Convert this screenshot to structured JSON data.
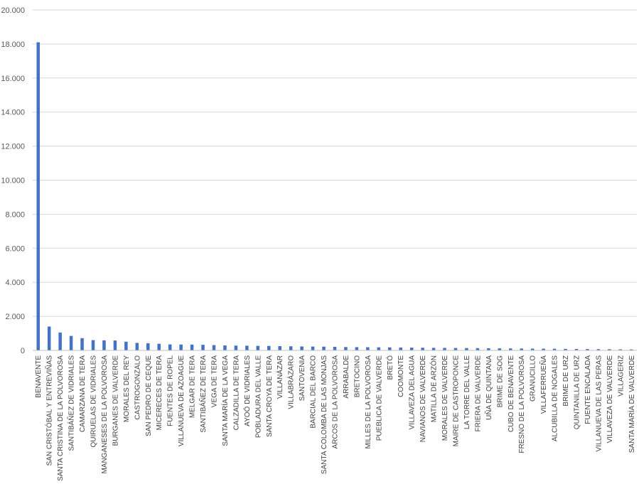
{
  "chart_data": {
    "type": "bar",
    "title": "",
    "xlabel": "",
    "ylabel": "",
    "ylim": [
      0,
      20000
    ],
    "yticks": [
      0,
      2000,
      4000,
      6000,
      8000,
      10000,
      12000,
      14000,
      16000,
      18000,
      20000
    ],
    "ytick_labels": [
      "0",
      "2.000",
      "4.000",
      "6.000",
      "8.000",
      "10.000",
      "12.000",
      "14.000",
      "16.000",
      "18.000",
      "20.000"
    ],
    "grid": true,
    "legend": "none",
    "bar_color": "#4472c4",
    "categories": [
      "BENAVENTE",
      "SAN CRISTÓBAL Y ENTREVIÑAS",
      "SANTA CRISTINA DE LA POLVOROSA",
      "SANTIBÁÑEZ DE VIDRIALES",
      "CAMARZANA DE TERA",
      "QUIRUELAS DE VIDRIALES",
      "MANGANESES DE LA POLVOROSA",
      "BURGANES DE VALVERDE",
      "MORALES DEL REY",
      "CASTROGONZALO",
      "SAN PEDRO DE CEQUE",
      "MICERECES DE TERA",
      "FUENTES DE ROPEL",
      "VILLANUEVA DE AZOAGUE",
      "MELGAR DE TERA",
      "SANTIBÁÑEZ DE TERA",
      "VEGA DE TERA",
      "SANTA MARÍA DE LA VEGA",
      "CALZADILLA DE TERA",
      "AYOÓ DE VIDRIALES",
      "POBLADURA DEL VALLE",
      "SANTA CROYA DE TERA",
      "VILLANÁZAR",
      "VILLABRÁZARO",
      "SANTOVENIA",
      "BARCIAL DEL BARCO",
      "SANTA COLOMBA DE LAS MONJAS",
      "ARCOS DE LA POLVOROSA",
      "ARRABALDE",
      "BRETOCINO",
      "MILLES DE LA POLVOROSA",
      "PUEBLICA DE VALVERDE",
      "BRETÓ",
      "COOMONTE",
      "VILLAVEZA DEL AGUA",
      "NAVIANOS DE VALVERDE",
      "MATILLA DE ARZÓN",
      "MORALES DE VALVERDE",
      "MAIRE DE CASTROPONCE",
      "LA TORRE DEL VALLE",
      "FRIERA DE VALVERDE",
      "UÑA DE QUINTANA",
      "BRIME DE SOG",
      "CUBO DE BENAVENTE",
      "FRESNO DE LA POLVOROSA",
      "GRANUCILLO",
      "VILLAFERRUEÑA",
      "ALCUBILLA DE NOGALES",
      "BRIME DE URZ",
      "QUINTANILLA DE URZ",
      "FUENTE ENCALADA",
      "VILLANUEVA DE LAS PERAS",
      "VILLAVEZA DE VALVERDE",
      "VILLAGERIZ",
      "SANTA MARÍA DE VALVERDE"
    ],
    "values": [
      18100,
      1400,
      1050,
      850,
      720,
      600,
      590,
      580,
      510,
      440,
      420,
      390,
      350,
      345,
      340,
      330,
      310,
      290,
      280,
      275,
      265,
      260,
      250,
      240,
      230,
      225,
      220,
      210,
      195,
      190,
      185,
      180,
      175,
      165,
      160,
      155,
      150,
      145,
      140,
      135,
      130,
      125,
      120,
      115,
      110,
      105,
      100,
      95,
      90,
      85,
      80,
      75,
      70,
      60,
      55
    ]
  }
}
